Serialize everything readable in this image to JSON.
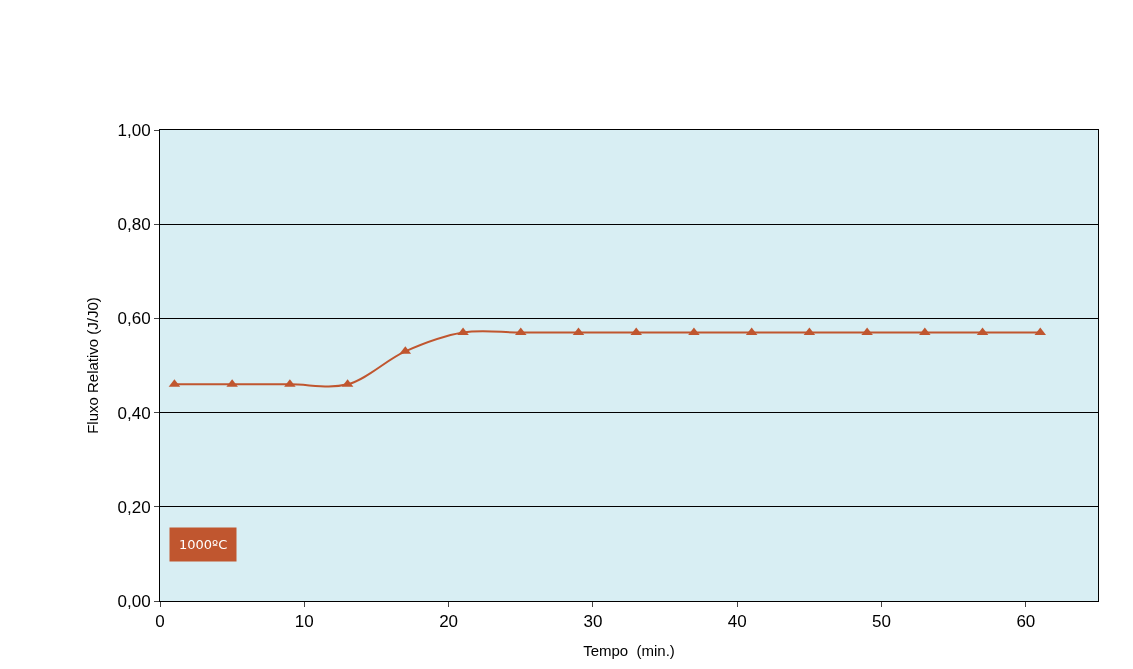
{
  "chart_data": {
    "type": "line",
    "xlabel": "Tempo  (min.)",
    "ylabel": "Fluxo Relativo (J/J0)",
    "x": [
      1,
      5,
      9,
      13,
      17,
      21,
      25,
      29,
      33,
      37,
      41,
      45,
      49,
      53,
      57,
      61
    ],
    "series": [
      {
        "color": "#c0562f",
        "values": [
          0.46,
          0.46,
          0.46,
          0.46,
          0.53,
          0.57,
          0.57,
          0.57,
          0.57,
          0.57,
          0.57,
          0.57,
          0.57,
          0.57,
          0.57,
          0.57
        ]
      }
    ],
    "xlim": [
      0,
      65
    ],
    "xticks": [
      0,
      10,
      20,
      30,
      40,
      50,
      60
    ],
    "ylim": [
      0,
      1
    ],
    "yticks": [
      {
        "value": 0,
        "label": "0,00"
      },
      {
        "value": 0.2,
        "label": "0,20"
      },
      {
        "value": 0.4,
        "label": "0,40"
      },
      {
        "value": 0.6,
        "label": "0,60"
      },
      {
        "value": 0.8,
        "label": "0,80"
      },
      {
        "value": 1,
        "label": "1,00"
      }
    ],
    "grid": "y",
    "marker": "triangle",
    "line_style": "solid",
    "annotations": [
      "1000ºC"
    ]
  }
}
